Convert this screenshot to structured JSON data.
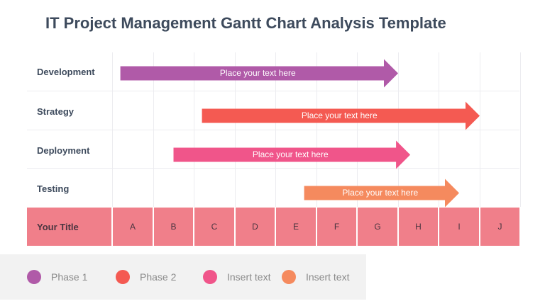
{
  "title": "IT Project Management Gantt Chart Analysis Template",
  "rows": [
    {
      "label": "Development",
      "bar_text": "Place your text here",
      "start": 0.2,
      "end": 7.0,
      "color": "#b05aa8"
    },
    {
      "label": "Strategy",
      "bar_text": "Place your text here",
      "start": 2.2,
      "end": 9.0,
      "color": "#f45a52"
    },
    {
      "label": "Deployment",
      "bar_text": "Place your text here",
      "start": 1.5,
      "end": 7.3,
      "color": "#f0558a"
    },
    {
      "label": "Testing",
      "bar_text": "Place your text here",
      "start": 4.7,
      "end": 8.5,
      "color": "#f58a5e"
    }
  ],
  "axis": {
    "title": "Your Title",
    "columns": [
      "A",
      "B",
      "C",
      "D",
      "E",
      "F",
      "G",
      "H",
      "I",
      "J"
    ]
  },
  "legend": [
    {
      "label": "Phase 1",
      "color": "#b05aa8"
    },
    {
      "label": "Phase 2",
      "color": "#f45a52"
    },
    {
      "label": "Insert text",
      "color": "#f0558a"
    },
    {
      "label": "Insert text",
      "color": "#f58a5e"
    }
  ]
}
